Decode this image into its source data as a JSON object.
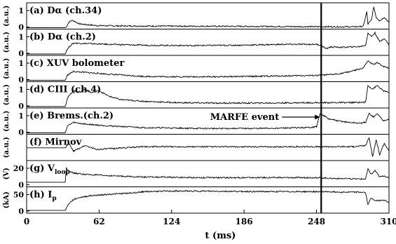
{
  "chart_data": {
    "type": "line",
    "x_ticks": [
      "0",
      "62",
      "124",
      "186",
      "248",
      "310"
    ],
    "xlabel": "t (ms)",
    "xlim": [
      0,
      310
    ],
    "annotation": {
      "text": "MARFE event",
      "t": 252
    },
    "panels": [
      {
        "key": "a",
        "label": "(a) Dα (ch.34)",
        "unit": "(a.u.)",
        "yticks": [
          "1",
          "0"
        ],
        "ylim": [
          0,
          1.3
        ],
        "points": [
          [
            0,
            0
          ],
          [
            33,
            0
          ],
          [
            34,
            0.05
          ],
          [
            36,
            0.3
          ],
          [
            38,
            0.4
          ],
          [
            40,
            0.4
          ],
          [
            45,
            0.22
          ],
          [
            50,
            0.18
          ],
          [
            60,
            0.12
          ],
          [
            80,
            0.1
          ],
          [
            120,
            0.09
          ],
          [
            180,
            0.08
          ],
          [
            240,
            0.06
          ],
          [
            280,
            0.05
          ],
          [
            288,
            0.08
          ],
          [
            291,
            0.9
          ],
          [
            292,
            0.2
          ],
          [
            295,
            0.45
          ],
          [
            297,
            1.2
          ],
          [
            299,
            0.6
          ],
          [
            302,
            0.4
          ],
          [
            306,
            0.6
          ],
          [
            310,
            0.3
          ]
        ]
      },
      {
        "key": "b",
        "label": "(b) Dα (ch.2)",
        "unit": "(a.u.)",
        "yticks": [
          "1",
          "0"
        ],
        "ylim": [
          0,
          1.3
        ],
        "points": [
          [
            0,
            0
          ],
          [
            33,
            0
          ],
          [
            34,
            0.2
          ],
          [
            37,
            0.45
          ],
          [
            40,
            0.62
          ],
          [
            50,
            0.6
          ],
          [
            70,
            0.55
          ],
          [
            100,
            0.5
          ],
          [
            140,
            0.48
          ],
          [
            180,
            0.5
          ],
          [
            220,
            0.55
          ],
          [
            248,
            0.55
          ],
          [
            252,
            0.5
          ],
          [
            256,
            0.3
          ],
          [
            260,
            0.4
          ],
          [
            270,
            0.38
          ],
          [
            285,
            0.42
          ],
          [
            290,
            0.5
          ],
          [
            292,
            1.2
          ],
          [
            295,
            1.0
          ],
          [
            298,
            1.2
          ],
          [
            302,
            0.7
          ],
          [
            306,
            0.9
          ],
          [
            310,
            0.5
          ]
        ]
      },
      {
        "key": "c",
        "label": "(c) XUV bolometer",
        "unit": "(a.u.)",
        "yticks": [
          "1",
          "0"
        ],
        "ylim": [
          0,
          1.3
        ],
        "points": [
          [
            0,
            0
          ],
          [
            33,
            0
          ],
          [
            35,
            0.3
          ],
          [
            40,
            0.5
          ],
          [
            50,
            0.45
          ],
          [
            70,
            0.35
          ],
          [
            100,
            0.22
          ],
          [
            130,
            0.2
          ],
          [
            160,
            0.2
          ],
          [
            190,
            0.22
          ],
          [
            220,
            0.25
          ],
          [
            250,
            0.28
          ],
          [
            260,
            0.32
          ],
          [
            270,
            0.4
          ],
          [
            280,
            0.55
          ],
          [
            288,
            0.7
          ],
          [
            292,
            1.1
          ],
          [
            296,
            0.9
          ],
          [
            300,
            1.0
          ],
          [
            305,
            0.8
          ],
          [
            310,
            0.7
          ]
        ]
      },
      {
        "key": "d",
        "label": "(d) CIII (ch.4)",
        "unit": "(a.u.)",
        "yticks": [
          "1",
          "0"
        ],
        "ylim": [
          0,
          1.3
        ],
        "points": [
          [
            0,
            0
          ],
          [
            33,
            0
          ],
          [
            35,
            0.5
          ],
          [
            40,
            0.9
          ],
          [
            45,
            0.8
          ],
          [
            50,
            1.0
          ],
          [
            55,
            0.8
          ],
          [
            62,
            0.9
          ],
          [
            70,
            0.6
          ],
          [
            80,
            0.4
          ],
          [
            100,
            0.3
          ],
          [
            130,
            0.22
          ],
          [
            160,
            0.2
          ],
          [
            200,
            0.2
          ],
          [
            240,
            0.22
          ],
          [
            280,
            0.23
          ],
          [
            290,
            0.25
          ],
          [
            292,
            1.2
          ],
          [
            296,
            1.0
          ],
          [
            300,
            1.2
          ],
          [
            305,
            0.9
          ],
          [
            310,
            0.8
          ]
        ]
      },
      {
        "key": "e",
        "label": "(e) Brems.(ch.2)",
        "unit": "(a.u.)",
        "yticks": [
          "1",
          "0"
        ],
        "ylim": [
          0,
          1.3
        ],
        "points": [
          [
            0,
            0
          ],
          [
            33,
            0
          ],
          [
            35,
            0.4
          ],
          [
            40,
            0.6
          ],
          [
            50,
            0.5
          ],
          [
            70,
            0.4
          ],
          [
            100,
            0.3
          ],
          [
            150,
            0.25
          ],
          [
            200,
            0.25
          ],
          [
            240,
            0.3
          ],
          [
            248,
            0.35
          ],
          [
            251,
            1.1
          ],
          [
            254,
            1.0
          ],
          [
            258,
            0.8
          ],
          [
            265,
            0.7
          ],
          [
            275,
            0.6
          ],
          [
            285,
            0.55
          ],
          [
            290,
            0.6
          ],
          [
            293,
            1.1
          ],
          [
            297,
            0.9
          ],
          [
            300,
            1.1
          ],
          [
            305,
            0.7
          ],
          [
            310,
            0.8
          ]
        ]
      },
      {
        "key": "f",
        "label": "(f) Mirnov",
        "unit": "(a.u.)",
        "yticks": [],
        "ylim": [
          -1,
          1
        ],
        "points": [
          [
            0,
            0
          ],
          [
            33,
            0
          ],
          [
            36,
            0.4
          ],
          [
            40,
            -0.3
          ],
          [
            50,
            0.2
          ],
          [
            60,
            -0.15
          ],
          [
            100,
            0.1
          ],
          [
            200,
            0.08
          ],
          [
            280,
            0.1
          ],
          [
            290,
            0.2
          ],
          [
            293,
            0.9
          ],
          [
            296,
            -0.8
          ],
          [
            299,
            0.7
          ],
          [
            302,
            -0.6
          ],
          [
            306,
            0.4
          ],
          [
            310,
            -0.3
          ]
        ]
      },
      {
        "key": "g",
        "label": "(g) V",
        "label_sub": "loop",
        "unit": "(V)",
        "yticks": [
          "20",
          "0"
        ],
        "ylim": [
          -5,
          30
        ],
        "points": [
          [
            0,
            0
          ],
          [
            33,
            0
          ],
          [
            34,
            22
          ],
          [
            36,
            18
          ],
          [
            40,
            14
          ],
          [
            50,
            12
          ],
          [
            70,
            10
          ],
          [
            100,
            8
          ],
          [
            150,
            7
          ],
          [
            200,
            7
          ],
          [
            250,
            7
          ],
          [
            260,
            6
          ],
          [
            280,
            5
          ],
          [
            290,
            5
          ],
          [
            292,
            20
          ],
          [
            295,
            12
          ],
          [
            298,
            18
          ],
          [
            302,
            8
          ],
          [
            306,
            10
          ],
          [
            310,
            6
          ]
        ]
      },
      {
        "key": "h",
        "label": "(h) I",
        "label_sub": "p",
        "unit": "(kA)",
        "yticks": [
          "50",
          "0"
        ],
        "ylim": [
          -5,
          80
        ],
        "points": [
          [
            0,
            0
          ],
          [
            33,
            0
          ],
          [
            36,
            25
          ],
          [
            40,
            40
          ],
          [
            45,
            48
          ],
          [
            55,
            55
          ],
          [
            70,
            60
          ],
          [
            90,
            65
          ],
          [
            100,
            70
          ],
          [
            120,
            72
          ],
          [
            150,
            72
          ],
          [
            180,
            71
          ],
          [
            210,
            70
          ],
          [
            240,
            70
          ],
          [
            255,
            70
          ],
          [
            275,
            68
          ],
          [
            288,
            68
          ],
          [
            290,
            65
          ],
          [
            292,
            20
          ],
          [
            294,
            45
          ],
          [
            297,
            40
          ],
          [
            300,
            35
          ],
          [
            305,
            40
          ],
          [
            310,
            30
          ]
        ]
      }
    ]
  }
}
